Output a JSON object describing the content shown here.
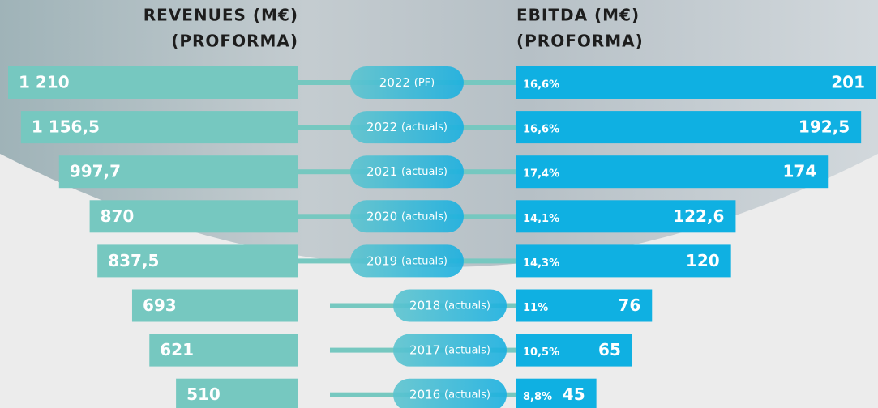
{
  "chart_data": {
    "type": "butterfly",
    "categories": [
      "2022",
      "2022",
      "2021",
      "2020",
      "2019",
      "2018",
      "2017",
      "2016"
    ],
    "notes": [
      "(PF)",
      "(actuals)",
      "(actuals)",
      "(actuals)",
      "(actuals)",
      "(actuals)",
      "(actuals)",
      "(actuals)"
    ],
    "series": [
      {
        "name": "REVENUES (M€)",
        "subtitle": "(PROFORMA)",
        "color": "#76c8c0",
        "values": [
          1210,
          1156.5,
          997.7,
          870,
          837.5,
          693,
          621,
          510
        ],
        "value_labels": [
          "1 210",
          "1 156,5",
          "997,7",
          "870",
          "837,5",
          "693",
          "621",
          "510"
        ]
      },
      {
        "name": "EBITDA (M€)",
        "subtitle": "(PROFORMA)",
        "color": "#0fb0e2",
        "values": [
          201,
          192.5,
          174,
          122.6,
          120,
          76,
          65,
          45
        ],
        "value_labels": [
          "201",
          "192,5",
          "174",
          "122,6",
          "120",
          "76",
          "65",
          "45"
        ],
        "margins": [
          "16,6%",
          "16,6%",
          "17,4%",
          "14,1%",
          "14,3%",
          "11%",
          "10,5%",
          "8,8%"
        ]
      }
    ]
  }
}
